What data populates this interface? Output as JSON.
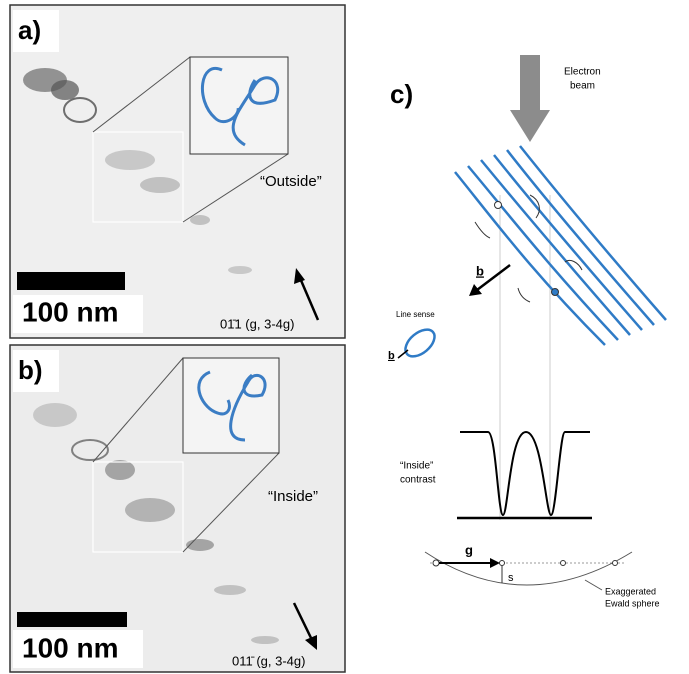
{
  "panel_a": {
    "label": "a)",
    "scale": "100 nm",
    "annotation": "“Outside”",
    "direction": "01̄1 (g, 3-4g)"
  },
  "panel_b": {
    "label": "b)",
    "scale": "100 nm",
    "annotation": "“Inside”",
    "direction": "011̄ (g, 3-4g)"
  },
  "panel_c": {
    "label": "c)",
    "electron_beam": [
      "Electron",
      "beam"
    ],
    "burgers": "b",
    "line_sense": "Line sense",
    "burgers_small": "b",
    "contrast": [
      "“Inside”",
      "contrast"
    ],
    "g_vector": "g",
    "s_label": "s",
    "ewald": [
      "Exaggerated",
      "Ewald sphere"
    ]
  }
}
